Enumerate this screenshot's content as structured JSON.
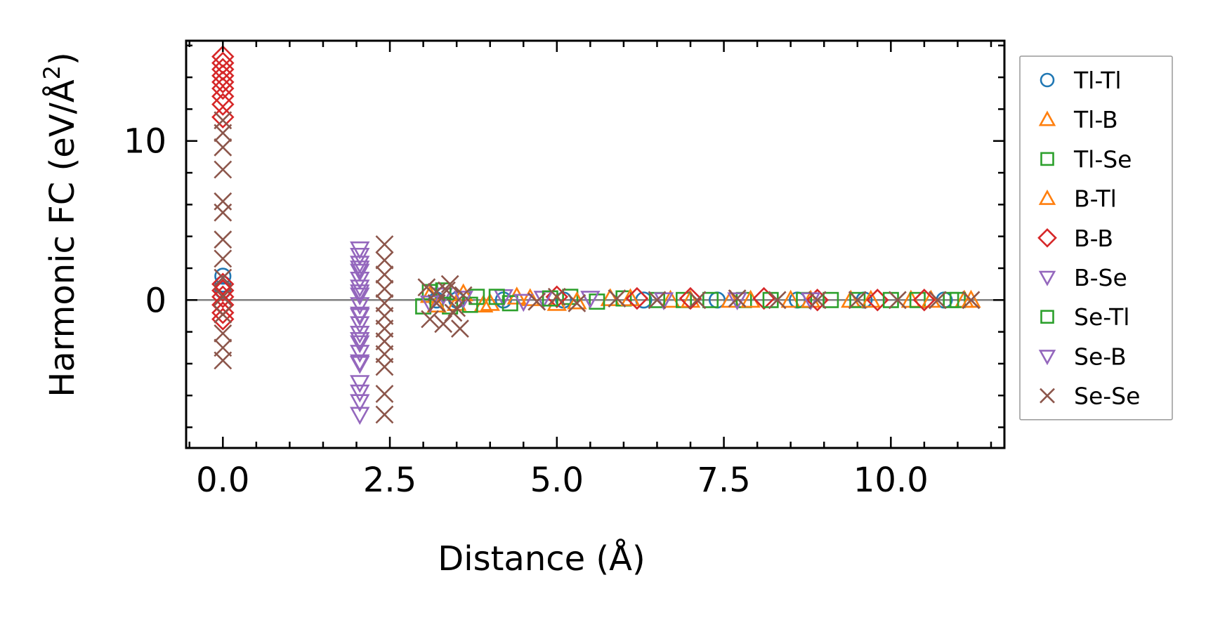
{
  "chart_data": {
    "type": "scatter",
    "title": "",
    "xlabel": "Distance (Å)",
    "ylabel_main": "Harmonic FC (eV/Å",
    "ylabel_sup": "2",
    "ylabel_close": ")",
    "xlim": [
      -0.55,
      11.7
    ],
    "ylim": [
      -9.3,
      16.3
    ],
    "xticks": [
      {
        "v": 0.0,
        "label": "0.0"
      },
      {
        "v": 2.5,
        "label": "2.5"
      },
      {
        "v": 5.0,
        "label": "5.0"
      },
      {
        "v": 7.5,
        "label": "7.5"
      },
      {
        "v": 10.0,
        "label": "10.0"
      }
    ],
    "yticks": [
      {
        "v": 0,
        "label": "0"
      },
      {
        "v": 10,
        "label": "10"
      }
    ],
    "zero_line": true,
    "legend_position": "outside-right",
    "series": [
      {
        "name": "Tl-Tl",
        "marker": "circle",
        "color": "#1f77b4",
        "x": [
          0.0,
          0.0,
          0.0,
          3.2,
          3.5,
          4.2,
          5.1,
          6.3,
          7.4,
          8.6,
          9.6,
          10.8
        ],
        "y": [
          1.5,
          1.0,
          0.6,
          0.0,
          0.0,
          0.0,
          0.0,
          0.0,
          0.0,
          0.0,
          0.0,
          0.0
        ]
      },
      {
        "name": "Tl-B",
        "marker": "triangle-up",
        "color": "#ff7f0e",
        "x": [
          3.1,
          3.5,
          3.9,
          4.4,
          5.0,
          5.8,
          6.7,
          7.6,
          8.5,
          9.4,
          10.3,
          11.1
        ],
        "y": [
          0.3,
          -0.2,
          -0.3,
          0.2,
          -0.2,
          0.1,
          0.0,
          0.0,
          0.0,
          0.0,
          0.0,
          0.0
        ]
      },
      {
        "name": "Tl-Se",
        "marker": "square",
        "color": "#2ca02c",
        "x": [
          3.1,
          3.4,
          3.8,
          4.3,
          5.2,
          6.0,
          6.9,
          7.8,
          8.7,
          9.5,
          10.4,
          11.0
        ],
        "y": [
          0.5,
          -0.4,
          0.2,
          -0.2,
          0.2,
          0.1,
          0.0,
          0.0,
          0.0,
          0.0,
          0.0,
          0.0
        ]
      },
      {
        "name": "B-Tl",
        "marker": "triangle-up",
        "color": "#ff7f0e",
        "x": [
          3.2,
          3.6,
          4.0,
          4.6,
          5.3,
          6.1,
          7.0,
          7.9,
          8.8,
          9.7,
          10.6,
          11.2
        ],
        "y": [
          -0.3,
          0.4,
          -0.2,
          0.1,
          -0.1,
          0.1,
          0.0,
          0.0,
          0.0,
          0.0,
          0.0,
          0.0
        ]
      },
      {
        "name": "B-B",
        "marker": "diamond",
        "color": "#d62728",
        "x": [
          0.0,
          0.0,
          0.0,
          0.0,
          0.0,
          0.0,
          0.0,
          0.0,
          0.0,
          0.0,
          0.0,
          0.0,
          0.0,
          0.0,
          0.0,
          5.0,
          6.2,
          7.0,
          8.1,
          8.9,
          9.8,
          10.5
        ],
        "y": [
          15.3,
          14.9,
          14.5,
          14.1,
          13.7,
          13.3,
          12.8,
          12.3,
          11.5,
          1.0,
          0.6,
          0.2,
          -0.3,
          -0.8,
          -1.2,
          0.2,
          0.1,
          0.1,
          0.1,
          0.0,
          0.0,
          0.0
        ]
      },
      {
        "name": "B-Se",
        "marker": "triangle-down",
        "color": "#9467bd",
        "x": [
          2.05,
          2.05,
          2.05,
          2.05,
          2.05,
          2.05,
          2.05,
          2.05,
          2.05,
          2.05,
          2.05,
          2.05,
          2.05,
          2.05,
          2.05,
          2.05,
          2.05,
          2.05,
          3.3,
          4.2,
          4.8
        ],
        "y": [
          3.2,
          2.8,
          2.3,
          1.8,
          1.3,
          0.8,
          0.3,
          -0.3,
          -0.9,
          -1.5,
          -2.1,
          -2.7,
          -3.3,
          -3.9,
          -5.2,
          -5.8,
          -6.4,
          -7.2,
          0.3,
          0.2,
          0.1
        ]
      },
      {
        "name": "Se-Tl",
        "marker": "square",
        "color": "#2ca02c",
        "x": [
          3.0,
          3.3,
          3.7,
          4.1,
          4.9,
          5.6,
          6.5,
          7.3,
          8.2,
          9.1,
          10.0,
          10.9
        ],
        "y": [
          -0.4,
          0.6,
          -0.3,
          0.2,
          0.1,
          -0.1,
          0.0,
          0.0,
          0.0,
          0.0,
          0.0,
          0.0
        ]
      },
      {
        "name": "Se-B",
        "marker": "triangle-down",
        "color": "#9467bd",
        "x": [
          2.05,
          2.05,
          2.05,
          2.05,
          2.05,
          3.1,
          3.6,
          4.5,
          5.5,
          6.6,
          7.7,
          8.8
        ],
        "y": [
          2.0,
          0.5,
          -1.0,
          -2.5,
          -4.0,
          -0.2,
          0.1,
          -0.1,
          0.1,
          0.0,
          0.0,
          0.0
        ]
      },
      {
        "name": "Se-Se",
        "marker": "x",
        "color": "#8c564b",
        "x": [
          0.0,
          0.0,
          0.0,
          0.0,
          0.0,
          0.0,
          0.0,
          0.0,
          0.0,
          0.0,
          0.0,
          0.0,
          0.0,
          0.0,
          2.42,
          2.42,
          2.42,
          2.42,
          2.42,
          2.42,
          2.42,
          2.42,
          2.42,
          2.42,
          2.42,
          2.42,
          3.05,
          3.1,
          3.2,
          3.3,
          3.4,
          3.5,
          3.55,
          3.6,
          3.2,
          3.35,
          3.45,
          4.7,
          5.0,
          5.3,
          5.9,
          6.5,
          7.1,
          7.7,
          8.3,
          8.9,
          9.5,
          10.1,
          10.7,
          11.2
        ],
        "y": [
          11.3,
          10.5,
          9.6,
          8.2,
          6.2,
          5.5,
          3.8,
          2.6,
          1.4,
          0.2,
          -0.9,
          -2.1,
          -3.0,
          -3.8,
          3.5,
          2.5,
          1.6,
          0.7,
          -0.2,
          -1.0,
          -1.8,
          -2.6,
          -3.4,
          -4.2,
          -5.9,
          -7.2,
          0.8,
          -1.2,
          0.5,
          -1.5,
          1.0,
          -0.5,
          -1.8,
          0.3,
          -0.2,
          0.6,
          -0.8,
          -0.1,
          0.2,
          -0.2,
          0.1,
          0.0,
          0.0,
          0.1,
          0.0,
          0.0,
          0.0,
          0.0,
          0.0,
          0.0
        ]
      }
    ]
  }
}
